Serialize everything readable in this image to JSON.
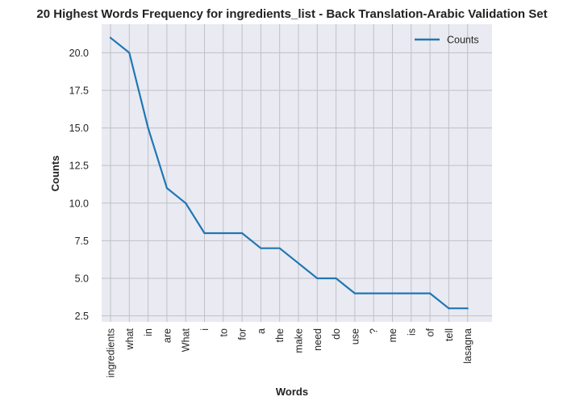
{
  "chart_data": {
    "type": "line",
    "title": "20 Highest Words Frequency for ingredients_list - Back Translation-Arabic Validation Set",
    "xlabel": "Words",
    "ylabel": "Counts",
    "categories": [
      "ingredients",
      "what",
      "in",
      "are",
      "What",
      "i",
      "to",
      "for",
      "a",
      "the",
      "make",
      "need",
      "do",
      "use",
      "?",
      "me",
      "is",
      "of",
      "tell",
      "lasagna"
    ],
    "series": [
      {
        "name": "Counts",
        "values": [
          21,
          20,
          15,
          11,
          10,
          8,
          8,
          8,
          7,
          7,
          6,
          5,
          5,
          4,
          4,
          4,
          4,
          4,
          3,
          3
        ]
      }
    ],
    "yticks": [
      2.5,
      5.0,
      7.5,
      10.0,
      12.5,
      15.0,
      17.5,
      20.0
    ],
    "ytick_labels": [
      "2.5",
      "5.0",
      "7.5",
      "10.0",
      "12.5",
      "15.0",
      "17.5",
      "20.0"
    ],
    "ylim": [
      2.1,
      21.9
    ],
    "grid": true,
    "legend_position": "top-right",
    "colors": {
      "line": "#1f77b4",
      "plot_bg": "#eaeaf2",
      "grid": "#c0c0c8"
    }
  }
}
